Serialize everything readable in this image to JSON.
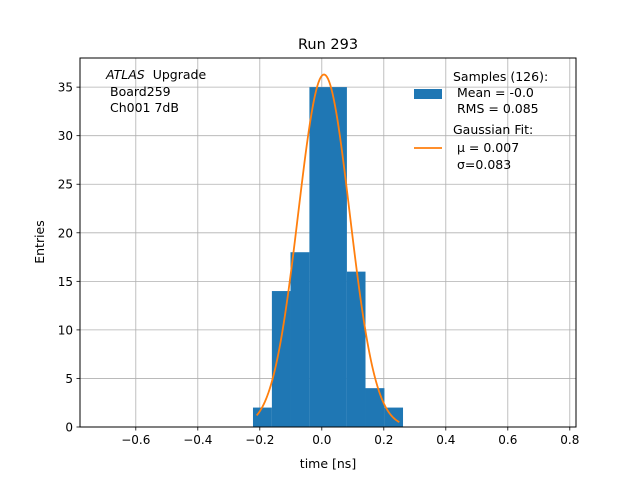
{
  "chart_data": {
    "type": "bar",
    "title": "Run 293",
    "xlabel": "time [ns]",
    "ylabel": "Entries",
    "xlim": [
      -0.78,
      0.82
    ],
    "ylim": [
      0,
      38
    ],
    "grid": true,
    "xticks": [
      -0.6,
      -0.4,
      -0.2,
      0.0,
      0.2,
      0.4,
      0.6,
      0.8
    ],
    "xtick_labels": [
      "−0.6",
      "−0.4",
      "−0.2",
      "0.0",
      "0.2",
      "0.4",
      "0.6",
      "0.8"
    ],
    "yticks": [
      0,
      5,
      10,
      15,
      20,
      25,
      30,
      35
    ],
    "ytick_labels": [
      "0",
      "5",
      "10",
      "15",
      "20",
      "25",
      "30",
      "35"
    ],
    "annotation": {
      "atlas": "ATLAS",
      "upgrade": "Upgrade",
      "board": "Board259",
      "channel": "Ch001 7dB"
    },
    "legend_position": "top-right",
    "legend": {
      "hist_lines": [
        "Samples (126):",
        "Mean = -0.0",
        "RMS = 0.085"
      ],
      "fit_lines": [
        "Gaussian Fit:",
        "μ = 0.007",
        "σ=0.083"
      ]
    },
    "histogram": {
      "name": "Samples (126)",
      "color": "#1f77b4",
      "bins": [
        {
          "x0": -0.222,
          "x1": -0.161,
          "count": 2
        },
        {
          "x0": -0.161,
          "x1": -0.101,
          "count": 14
        },
        {
          "x0": -0.101,
          "x1": -0.04,
          "count": 18
        },
        {
          "x0": -0.04,
          "x1": 0.02,
          "count": 35
        },
        {
          "x0": 0.02,
          "x1": 0.081,
          "count": 35
        },
        {
          "x0": 0.081,
          "x1": 0.141,
          "count": 16
        },
        {
          "x0": 0.141,
          "x1": 0.202,
          "count": 4
        },
        {
          "x0": 0.202,
          "x1": 0.262,
          "count": 2
        }
      ]
    },
    "fit": {
      "name": "Gaussian Fit",
      "color": "#ff7f0e",
      "mu": 0.007,
      "sigma": 0.083,
      "amplitude": 36.3,
      "x_range": [
        -0.21,
        0.25
      ]
    }
  }
}
